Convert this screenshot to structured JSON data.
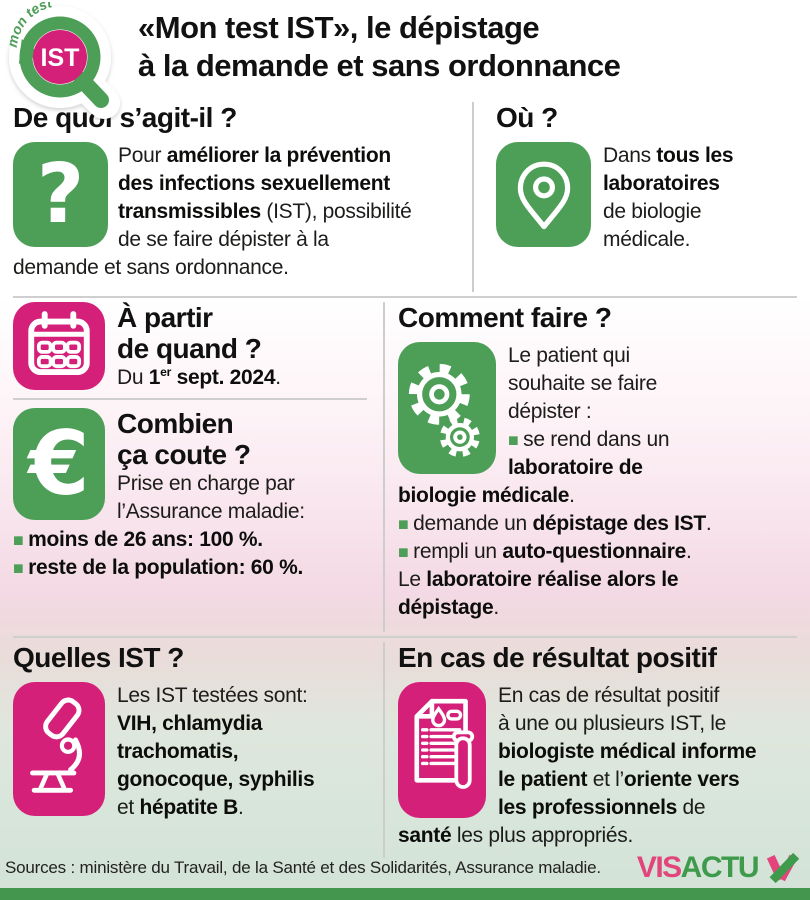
{
  "colors": {
    "green": "#4d9e57",
    "pink": "#d42078",
    "bar_green": "#44964e",
    "divider": "#cfcfcf",
    "brand_pink": "#e2457b",
    "brand_green": "#3f9b4c"
  },
  "header": {
    "logo": {
      "arc_text": "mon test",
      "label": "IST"
    },
    "title_line1": "«Mon test IST», le dépistage",
    "title_line2": "à la demande et sans ordonnance"
  },
  "sections": {
    "about": {
      "heading": "De quoi s’agit-il ?",
      "icon": "question-mark-icon",
      "body": [
        {
          "text": "Pour "
        },
        {
          "text": "améliorer la prévention",
          "bold": true
        },
        {
          "br": true
        },
        {
          "text": "des infections sexuellement",
          "bold": true
        },
        {
          "br": true
        },
        {
          "text": "transmissibles",
          "bold": true
        },
        {
          "text": " (IST), possibilité"
        },
        {
          "br": true
        },
        {
          "text": "de se faire dépister à la"
        },
        {
          "br": true
        },
        {
          "text": "demande et sans ordonnance."
        }
      ]
    },
    "where": {
      "heading": "Où ?",
      "icon": "location-pin-icon",
      "body": [
        {
          "text": "Dans "
        },
        {
          "text": "tous les",
          "bold": true
        },
        {
          "br": true
        },
        {
          "text": "laboratoires",
          "bold": true
        },
        {
          "br": true
        },
        {
          "text": "de biologie"
        },
        {
          "br": true
        },
        {
          "text": "médicale."
        }
      ]
    },
    "when": {
      "heading_line1": "À partir",
      "heading_line2": "de quand ?",
      "icon": "calendar-icon",
      "body": [
        {
          "text": "Du "
        },
        {
          "text": "1",
          "bold": true
        },
        {
          "text": "er",
          "bold": true,
          "sup": true
        },
        {
          "text": " sept. 2024",
          "bold": true
        },
        {
          "text": "."
        }
      ]
    },
    "cost": {
      "heading_line1": "Combien",
      "heading_line2": "ça coute ?",
      "icon": "euro-icon",
      "body": [
        {
          "text": "Prise en charge par"
        },
        {
          "br": true
        },
        {
          "text": "l’Assurance maladie:"
        },
        {
          "br": true
        },
        {
          "text": "■ ",
          "green": true
        },
        {
          "text": "moins de 26 ans: 100 %.",
          "bold": true
        },
        {
          "br": true
        },
        {
          "text": "■ ",
          "green": true
        },
        {
          "text": "reste de la population: 60 %.",
          "bold": true
        }
      ]
    },
    "how": {
      "heading": "Comment faire ?",
      "icon": "gears-icon",
      "body": [
        {
          "text": "Le patient qui"
        },
        {
          "br": true
        },
        {
          "text": "souhaite se faire"
        },
        {
          "br": true
        },
        {
          "text": "dépister :"
        },
        {
          "br": true
        },
        {
          "text": "■ ",
          "green": true
        },
        {
          "text": "se rend dans un"
        },
        {
          "br": true
        },
        {
          "text": "laboratoire de",
          "bold": true
        },
        {
          "br": true
        },
        {
          "text": "biologie médicale",
          "bold": true
        },
        {
          "text": "."
        },
        {
          "br": true
        },
        {
          "text": "■ ",
          "green": true
        },
        {
          "text": "demande un "
        },
        {
          "text": "dépistage des IST",
          "bold": true
        },
        {
          "text": "."
        },
        {
          "br": true
        },
        {
          "text": "■ ",
          "green": true
        },
        {
          "text": "rempli un "
        },
        {
          "text": "auto-questionnaire",
          "bold": true
        },
        {
          "text": "."
        },
        {
          "br": true
        },
        {
          "text": "Le "
        },
        {
          "text": "laboratoire réalise alors le",
          "bold": true
        },
        {
          "br": true
        },
        {
          "text": "dépistage",
          "bold": true
        },
        {
          "text": "."
        }
      ]
    },
    "ist": {
      "heading": "Quelles IST ?",
      "icon": "microscope-icon",
      "body": [
        {
          "text": "Les IST testées sont:"
        },
        {
          "br": true
        },
        {
          "text": "VIH, chlamydia",
          "bold": true
        },
        {
          "br": true
        },
        {
          "text": "trachomatis,",
          "bold": true
        },
        {
          "br": true
        },
        {
          "text": "gonocoque, syphilis",
          "bold": true
        },
        {
          "br": true
        },
        {
          "text": "et "
        },
        {
          "text": "hépatite B",
          "bold": true
        },
        {
          "text": "."
        }
      ]
    },
    "positive": {
      "heading": "En cas de résultat positif",
      "icon": "report-test-tube-icon",
      "body": [
        {
          "text": "En cas de résultat positif"
        },
        {
          "br": true
        },
        {
          "text": "à une ou plusieurs IST, le"
        },
        {
          "br": true
        },
        {
          "text": "biologiste médical informe",
          "bold": true
        },
        {
          "br": true
        },
        {
          "text": "le patient",
          "bold": true
        },
        {
          "text": " et l’"
        },
        {
          "text": "oriente vers",
          "bold": true
        },
        {
          "br": true
        },
        {
          "text": "les professionnels",
          "bold": true
        },
        {
          "text": " de"
        },
        {
          "br": true
        },
        {
          "text": "santé",
          "bold": true
        },
        {
          "text": " les plus appropriés."
        }
      ]
    }
  },
  "footer": {
    "sources": "Sources : ministère du Travail, de la Santé et des Solidarités, Assurance maladie.",
    "brand_vis": "VIS",
    "brand_actu": "ACTU"
  }
}
